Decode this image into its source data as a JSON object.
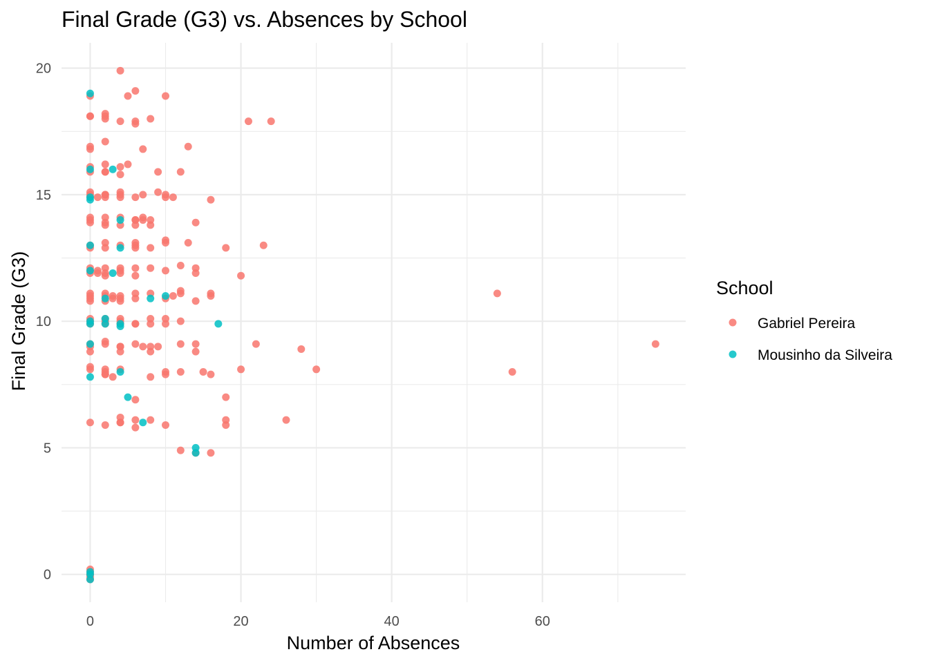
{
  "chart_data": {
    "type": "scatter",
    "title": "Final Grade (G3) vs. Absences by School",
    "xlabel": "Number of Absences",
    "ylabel": "Final Grade (G3)",
    "xlim": [
      -3.8,
      79
    ],
    "ylim": [
      -1.1,
      21
    ],
    "x_ticks": [
      0,
      20,
      40,
      60
    ],
    "y_ticks": [
      0,
      5,
      10,
      15,
      20
    ],
    "grid": true,
    "legend": {
      "title": "School",
      "position": "right"
    },
    "series": [
      {
        "name": "Gabriel Pereira",
        "color": "#F8766D",
        "points": [
          [
            4,
            19.9
          ],
          [
            6,
            19.1
          ],
          [
            10,
            18.9
          ],
          [
            5,
            18.9
          ],
          [
            0,
            18.9
          ],
          [
            0,
            18.1
          ],
          [
            0,
            18.1
          ],
          [
            2,
            18.2
          ],
          [
            2,
            18.1
          ],
          [
            2,
            18.0
          ],
          [
            4,
            17.9
          ],
          [
            6,
            17.9
          ],
          [
            6,
            17.8
          ],
          [
            8,
            18.0
          ],
          [
            21,
            17.9
          ],
          [
            24,
            17.9
          ],
          [
            2,
            17.1
          ],
          [
            0,
            16.9
          ],
          [
            0,
            16.8
          ],
          [
            7,
            16.8
          ],
          [
            13,
            16.9
          ],
          [
            0,
            16.1
          ],
          [
            2,
            16.2
          ],
          [
            4,
            16.1
          ],
          [
            5,
            16.2
          ],
          [
            2,
            15.9
          ],
          [
            2,
            15.9
          ],
          [
            4,
            15.8
          ],
          [
            9,
            15.9
          ],
          [
            12,
            15.9
          ],
          [
            0,
            15.9
          ],
          [
            0,
            15.1
          ],
          [
            0,
            15.0
          ],
          [
            2,
            15.0
          ],
          [
            2,
            15.0
          ],
          [
            4,
            15.1
          ],
          [
            4,
            15.0
          ],
          [
            7,
            15.0
          ],
          [
            9,
            15.1
          ],
          [
            10,
            15.0
          ],
          [
            0,
            14.9
          ],
          [
            1,
            14.9
          ],
          [
            2,
            14.9
          ],
          [
            4,
            14.9
          ],
          [
            6,
            14.9
          ],
          [
            10,
            14.9
          ],
          [
            11,
            14.9
          ],
          [
            16,
            14.8
          ],
          [
            0,
            14.1
          ],
          [
            0,
            14.0
          ],
          [
            2,
            14.1
          ],
          [
            4,
            14.1
          ],
          [
            6,
            14.0
          ],
          [
            6,
            14.0
          ],
          [
            7,
            14.1
          ],
          [
            7,
            14.0
          ],
          [
            8,
            14.0
          ],
          [
            0,
            13.9
          ],
          [
            2,
            13.9
          ],
          [
            2,
            13.8
          ],
          [
            4,
            13.8
          ],
          [
            6,
            13.8
          ],
          [
            8,
            13.8
          ],
          [
            14,
            13.9
          ],
          [
            0,
            13.0
          ],
          [
            2,
            13.1
          ],
          [
            4,
            13.0
          ],
          [
            6,
            13.1
          ],
          [
            6,
            13.0
          ],
          [
            10,
            13.2
          ],
          [
            10,
            13.1
          ],
          [
            13,
            13.1
          ],
          [
            23,
            13.0
          ],
          [
            0,
            12.9
          ],
          [
            2,
            12.9
          ],
          [
            6,
            12.9
          ],
          [
            8,
            12.9
          ],
          [
            18,
            12.9
          ],
          [
            0,
            12.0
          ],
          [
            0,
            11.9
          ],
          [
            1,
            12.0
          ],
          [
            2,
            12.1
          ],
          [
            2,
            11.9
          ],
          [
            4,
            12.1
          ],
          [
            4,
            12.0
          ],
          [
            6,
            12.1
          ],
          [
            8,
            12.1
          ],
          [
            10,
            12.0
          ],
          [
            12,
            12.2
          ],
          [
            14,
            12.1
          ],
          [
            0,
            12.1
          ],
          [
            1,
            11.9
          ],
          [
            2,
            11.8
          ],
          [
            4,
            11.9
          ],
          [
            6,
            11.8
          ],
          [
            14,
            11.9
          ],
          [
            20,
            11.8
          ],
          [
            0,
            11.1
          ],
          [
            0,
            11.0
          ],
          [
            2,
            11.1
          ],
          [
            2,
            11.0
          ],
          [
            3,
            11.0
          ],
          [
            4,
            11.0
          ],
          [
            4,
            10.9
          ],
          [
            6,
            11.1
          ],
          [
            8,
            11.1
          ],
          [
            10,
            10.9
          ],
          [
            11,
            11.0
          ],
          [
            12,
            11.1
          ],
          [
            12,
            11.2
          ],
          [
            16,
            11.1
          ],
          [
            16,
            11.0
          ],
          [
            0,
            10.9
          ],
          [
            0,
            10.8
          ],
          [
            2,
            10.8
          ],
          [
            3,
            10.9
          ],
          [
            4,
            10.8
          ],
          [
            6,
            10.9
          ],
          [
            14,
            10.8
          ],
          [
            54,
            11.1
          ],
          [
            0,
            10.1
          ],
          [
            0,
            10.0
          ],
          [
            2,
            10.0
          ],
          [
            2,
            10.1
          ],
          [
            4,
            10.1
          ],
          [
            4,
            10.0
          ],
          [
            6,
            9.9
          ],
          [
            8,
            10.1
          ],
          [
            10,
            10.1
          ],
          [
            12,
            10.0
          ],
          [
            0,
            9.9
          ],
          [
            2,
            9.9
          ],
          [
            4,
            9.9
          ],
          [
            6,
            9.9
          ],
          [
            8,
            9.9
          ],
          [
            10,
            9.9
          ],
          [
            0,
            9.1
          ],
          [
            0,
            9.0
          ],
          [
            2,
            9.2
          ],
          [
            2,
            9.1
          ],
          [
            4,
            9.0
          ],
          [
            4,
            9.0
          ],
          [
            6,
            9.1
          ],
          [
            7,
            9.0
          ],
          [
            8,
            9.0
          ],
          [
            9,
            9.0
          ],
          [
            12,
            9.1
          ],
          [
            14,
            9.1
          ],
          [
            22,
            9.1
          ],
          [
            28,
            8.9
          ],
          [
            75,
            9.1
          ],
          [
            0,
            8.8
          ],
          [
            4,
            8.8
          ],
          [
            8,
            8.8
          ],
          [
            14,
            8.8
          ],
          [
            0,
            8.2
          ],
          [
            0,
            8.1
          ],
          [
            2,
            8.1
          ],
          [
            2,
            8.0
          ],
          [
            4,
            8.1
          ],
          [
            2,
            7.9
          ],
          [
            2,
            7.9
          ],
          [
            3,
            7.8
          ],
          [
            8,
            7.8
          ],
          [
            10,
            8.0
          ],
          [
            10,
            7.9
          ],
          [
            12,
            8.0
          ],
          [
            15,
            8.0
          ],
          [
            16,
            7.9
          ],
          [
            20,
            8.1
          ],
          [
            30,
            8.1
          ],
          [
            56,
            8.0
          ],
          [
            6,
            6.9
          ],
          [
            18,
            7.0
          ],
          [
            0,
            6.0
          ],
          [
            2,
            5.9
          ],
          [
            4,
            6.2
          ],
          [
            4,
            6.0
          ],
          [
            4,
            6.0
          ],
          [
            6,
            6.1
          ],
          [
            6,
            5.8
          ],
          [
            8,
            6.1
          ],
          [
            10,
            5.9
          ],
          [
            18,
            6.1
          ],
          [
            18,
            5.9
          ],
          [
            26,
            6.1
          ],
          [
            12,
            4.9
          ],
          [
            14,
            4.8
          ],
          [
            16,
            4.8
          ],
          [
            0,
            0.2
          ],
          [
            0,
            0.0
          ],
          [
            0,
            -0.2
          ],
          [
            0,
            0.1
          ],
          [
            0,
            -0.1
          ],
          [
            0,
            0.0
          ]
        ]
      },
      {
        "name": "Mousinho da Silveira",
        "color": "#00BFC4",
        "points": [
          [
            0,
            19.0
          ],
          [
            0,
            16.0
          ],
          [
            3,
            16.0
          ],
          [
            0,
            14.9
          ],
          [
            0,
            14.8
          ],
          [
            4,
            14.0
          ],
          [
            0,
            13.0
          ],
          [
            4,
            12.9
          ],
          [
            0,
            12.0
          ],
          [
            3,
            11.9
          ],
          [
            2,
            10.9
          ],
          [
            8,
            10.9
          ],
          [
            10,
            11.0
          ],
          [
            0,
            10.0
          ],
          [
            2,
            10.1
          ],
          [
            0,
            9.9
          ],
          [
            2,
            9.9
          ],
          [
            4,
            9.9
          ],
          [
            4,
            9.8
          ],
          [
            17,
            9.9
          ],
          [
            0,
            9.1
          ],
          [
            4,
            8.0
          ],
          [
            0,
            7.8
          ],
          [
            5,
            7.0
          ],
          [
            7,
            6.0
          ],
          [
            14,
            5.0
          ],
          [
            14,
            4.8
          ],
          [
            0,
            0.1
          ],
          [
            0,
            -0.2
          ],
          [
            0,
            0.0
          ]
        ]
      }
    ]
  }
}
